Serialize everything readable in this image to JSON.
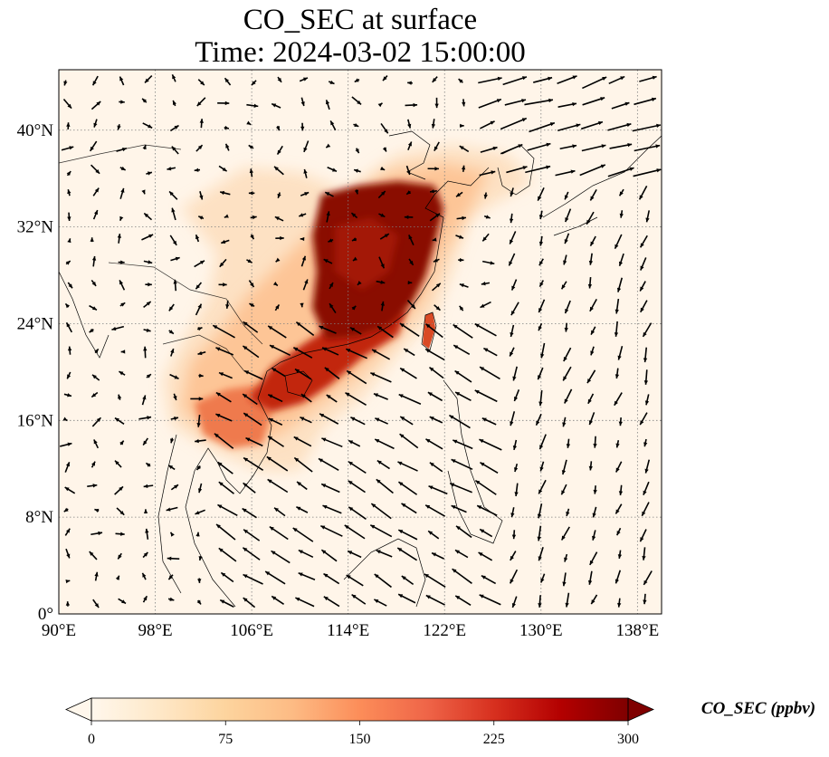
{
  "title_line1": "CO_SEC at surface",
  "title_line2": "Time: 2024-03-02 15:00:00",
  "map": {
    "lon_range": [
      90,
      140
    ],
    "lat_range": [
      0,
      45
    ],
    "lon_ticks": [
      90,
      98,
      106,
      114,
      122,
      130,
      138
    ],
    "lat_ticks": [
      0,
      8,
      16,
      24,
      32,
      40
    ],
    "lon_tick_labels": [
      "90°E",
      "98°E",
      "106°E",
      "114°E",
      "122°E",
      "130°E",
      "138°E"
    ],
    "lat_tick_labels": [
      "0°",
      "8°N",
      "16°N",
      "24°N",
      "32°N",
      "40°N"
    ],
    "gridlines": true,
    "background_color": "#fff5e9"
  },
  "colorbar": {
    "label": "CO_SEC (ppbv)",
    "range": [
      0,
      300
    ],
    "ticks": [
      0,
      75,
      150,
      225,
      300
    ],
    "tick_labels": [
      "0",
      "75",
      "150",
      "225",
      "300"
    ],
    "extend": "both",
    "colormap": "OrRd",
    "colors": [
      "#fff7ec",
      "#fee8c8",
      "#fdd49e",
      "#fdbb84",
      "#fc8d59",
      "#ef6548",
      "#d7301f",
      "#b30000",
      "#7f0000"
    ]
  },
  "plumes": [
    {
      "name": "east-china-core",
      "color": "#8a0b05"
    },
    {
      "name": "south-china",
      "color": "#c2260e"
    },
    {
      "name": "indochina",
      "color": "#ef7a4d"
    },
    {
      "name": "taiwan",
      "color": "#d94a25"
    }
  ]
}
